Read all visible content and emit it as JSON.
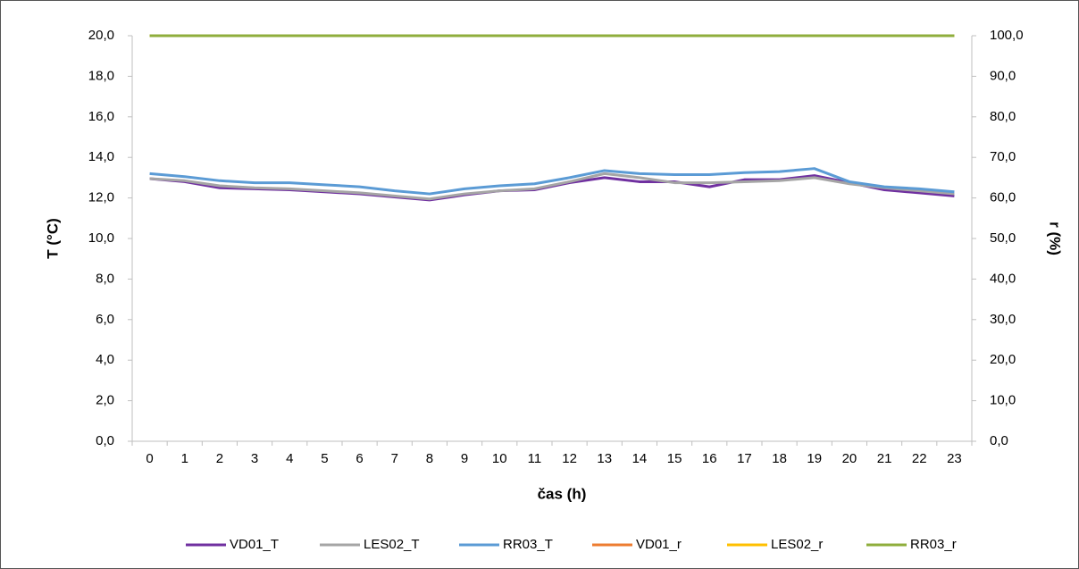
{
  "chart_data": {
    "type": "line",
    "x_label": "čas (h)",
    "y_label": "T (°C)",
    "y2_label": "r (%)",
    "categories": [
      "0",
      "1",
      "2",
      "3",
      "4",
      "5",
      "6",
      "7",
      "8",
      "9",
      "10",
      "11",
      "12",
      "13",
      "14",
      "15",
      "16",
      "17",
      "18",
      "19",
      "20",
      "21",
      "22",
      "23"
    ],
    "ylim": [
      0,
      20
    ],
    "yticks": [
      {
        "value": 0,
        "label": "0,0"
      },
      {
        "value": 2,
        "label": "2,0"
      },
      {
        "value": 4,
        "label": "4,0"
      },
      {
        "value": 6,
        "label": "6,0"
      },
      {
        "value": 8,
        "label": "8,0"
      },
      {
        "value": 10,
        "label": "10,0"
      },
      {
        "value": 12,
        "label": "12,0"
      },
      {
        "value": 14,
        "label": "14,0"
      },
      {
        "value": 16,
        "label": "16,0"
      },
      {
        "value": 18,
        "label": "18,0"
      },
      {
        "value": 20,
        "label": "20,0"
      }
    ],
    "y2lim": [
      0,
      100
    ],
    "y2ticks": [
      {
        "value": 0,
        "label": "0,0"
      },
      {
        "value": 10,
        "label": "10,0"
      },
      {
        "value": 20,
        "label": "20,0"
      },
      {
        "value": 30,
        "label": "30,0"
      },
      {
        "value": 40,
        "label": "40,0"
      },
      {
        "value": 50,
        "label": "50,0"
      },
      {
        "value": 60,
        "label": "60,0"
      },
      {
        "value": 70,
        "label": "70,0"
      },
      {
        "value": 80,
        "label": "80,0"
      },
      {
        "value": 90,
        "label": "90,0"
      },
      {
        "value": 100,
        "label": "100,0"
      }
    ],
    "grid": false,
    "legend": "bottom",
    "series": [
      {
        "name": "VD01_T",
        "color": "#7030a0",
        "values": [
          12.95,
          12.8,
          12.5,
          12.45,
          12.4,
          12.3,
          12.2,
          12.05,
          11.9,
          12.15,
          12.35,
          12.4,
          12.75,
          13.0,
          12.8,
          12.8,
          12.55,
          12.9,
          12.9,
          13.1,
          12.75,
          12.4,
          12.25,
          12.1
        ]
      },
      {
        "name": "LES02_T",
        "color": "#a5a5a5",
        "values": [
          12.95,
          12.85,
          12.6,
          12.5,
          12.45,
          12.35,
          12.25,
          12.1,
          11.95,
          12.2,
          12.35,
          12.45,
          12.8,
          13.2,
          13.0,
          12.75,
          12.75,
          12.8,
          12.85,
          13.0,
          12.7,
          12.5,
          12.35,
          12.2
        ]
      },
      {
        "name": "RR03_T",
        "color": "#5b9bd5",
        "values": [
          13.2,
          13.05,
          12.85,
          12.75,
          12.75,
          12.65,
          12.55,
          12.35,
          12.2,
          12.45,
          12.6,
          12.7,
          13.0,
          13.35,
          13.2,
          13.15,
          13.15,
          13.25,
          13.3,
          13.45,
          12.8,
          12.55,
          12.45,
          12.3
        ]
      },
      {
        "name": "VD01_r",
        "color": "#ed7d31",
        "axis": "y2",
        "values": [
          100,
          100,
          100,
          100,
          100,
          100,
          100,
          100,
          100,
          100,
          100,
          100,
          100,
          100,
          100,
          100,
          100,
          100,
          100,
          100,
          100,
          100,
          100,
          100
        ]
      },
      {
        "name": "LES02_r",
        "color": "#ffc000",
        "axis": "y2",
        "values": [
          100,
          100,
          100,
          100,
          100,
          100,
          100,
          100,
          100,
          100,
          100,
          100,
          100,
          100,
          100,
          100,
          100,
          100,
          100,
          100,
          100,
          100,
          100,
          100
        ]
      },
      {
        "name": "RR03_r",
        "color": "#8fae3c",
        "axis": "y2",
        "values": [
          100,
          100,
          100,
          100,
          100,
          100,
          100,
          100,
          100,
          100,
          100,
          100,
          100,
          100,
          100,
          100,
          100,
          100,
          100,
          100,
          100,
          100,
          100,
          100
        ]
      }
    ]
  }
}
